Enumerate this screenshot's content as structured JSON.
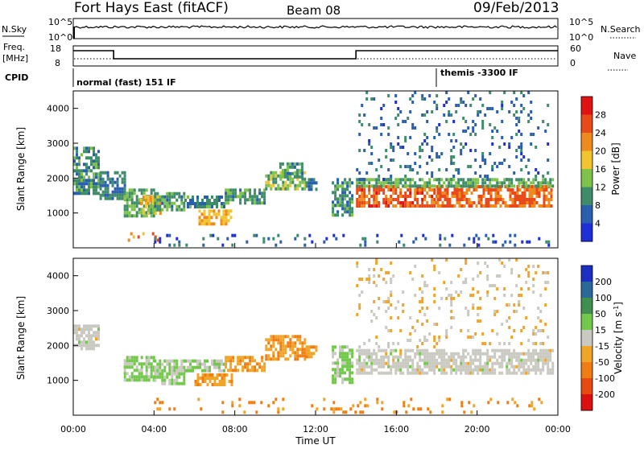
{
  "header": {
    "station": "Fort Hays East (fitACF)",
    "beam": "Beam 08",
    "date": "09/Feb/2013"
  },
  "panels": {
    "nsky": {
      "label": "N.Sky",
      "left_ticks": [
        "10^5",
        "10^0"
      ],
      "right_ticks": [
        "10^5",
        "10^0"
      ],
      "right_label": "N.Search"
    },
    "freq": {
      "label": "Freq.",
      "unit": "[MHz]",
      "left_ticks": [
        "18",
        "8"
      ],
      "right_ticks": [
        "60",
        "0"
      ],
      "right_label": "Nave"
    },
    "cpid": {
      "label": "CPID",
      "segments": [
        {
          "label": "normal (fast) 151 IF",
          "start_ut": 0,
          "end_ut": 18
        },
        {
          "label": "themis -3300 IF",
          "start_ut": 18,
          "end_ut": 24
        }
      ]
    }
  },
  "colors": {
    "power": [
      "#1f2fd8",
      "#2a5fb0",
      "#3f8c6a",
      "#7ec24a",
      "#f2c430",
      "#ef8a1f",
      "#e94a19",
      "#e01313"
    ],
    "velocity": [
      "#1c2fc0",
      "#2a6a9a",
      "#3f8f4e",
      "#72c84a",
      "#c9c9c1",
      "#f0a428",
      "#ef7d14",
      "#e84a14",
      "#dc1010"
    ]
  },
  "chart_data": [
    {
      "type": "heatmap",
      "name": "power",
      "ylabel": "Slant Range [km]",
      "y_ticks": [
        "1000",
        "2000",
        "3000",
        "4000"
      ],
      "ylim": [
        0,
        4500
      ],
      "xlim": [
        0,
        24
      ],
      "colorbar": {
        "label": "Power [dB]",
        "ticks": [
          "4",
          "8",
          "12",
          "16",
          "20",
          "24",
          "28"
        ],
        "range": [
          0,
          32
        ]
      },
      "bands": [
        {
          "t0": 0.0,
          "t1": 1.3,
          "r0": 1600,
          "r1": 2900,
          "v": 10
        },
        {
          "t0": 1.3,
          "t1": 2.5,
          "r0": 1400,
          "r1": 2200,
          "v": 8
        },
        {
          "t0": 2.5,
          "t1": 4.0,
          "r0": 900,
          "r1": 1700,
          "v": 12
        },
        {
          "t0": 3.3,
          "t1": 4.3,
          "r0": 1000,
          "r1": 1500,
          "v": 18
        },
        {
          "t0": 4.0,
          "t1": 5.5,
          "r0": 1100,
          "r1": 1600,
          "v": 11
        },
        {
          "t0": 5.5,
          "t1": 7.5,
          "r0": 1200,
          "r1": 1500,
          "v": 9
        },
        {
          "t0": 6.2,
          "t1": 7.8,
          "r0": 700,
          "r1": 1100,
          "v": 20
        },
        {
          "t0": 7.5,
          "t1": 9.5,
          "r0": 1300,
          "r1": 1700,
          "v": 10
        },
        {
          "t0": 9.5,
          "t1": 11.5,
          "r0": 1700,
          "r1": 2200,
          "v": 14
        },
        {
          "t0": 10.2,
          "t1": 11.3,
          "r0": 2000,
          "r1": 2450,
          "v": 10
        },
        {
          "t0": 11.5,
          "t1": 12.0,
          "r0": 1700,
          "r1": 2000,
          "v": 9
        },
        {
          "t0": 12.8,
          "t1": 13.8,
          "r0": 900,
          "r1": 2000,
          "v": 10
        },
        {
          "t0": 14.0,
          "t1": 18.0,
          "r0": 1200,
          "r1": 1800,
          "v": 25
        },
        {
          "t0": 18.0,
          "t1": 23.7,
          "r0": 1200,
          "r1": 1800,
          "v": 24
        },
        {
          "t0": 14.0,
          "t1": 23.7,
          "r0": 1750,
          "r1": 2000,
          "v": 12
        },
        {
          "t0": 14.0,
          "t1": 23.5,
          "r0": 2000,
          "r1": 4500,
          "v": 7
        },
        {
          "t0": 2.7,
          "t1": 4.2,
          "r0": 250,
          "r1": 450,
          "v": 22
        },
        {
          "t0": 4.0,
          "t1": 23.5,
          "r0": 80,
          "r1": 400,
          "v": 6
        }
      ]
    },
    {
      "type": "heatmap",
      "name": "velocity",
      "ylabel": "Slant Range [km]",
      "xlabel": "Time UT",
      "x_ticks": [
        "00:00",
        "04:00",
        "08:00",
        "12:00",
        "16:00",
        "20:00",
        "00:00"
      ],
      "y_ticks": [
        "1000",
        "2000",
        "3000",
        "4000"
      ],
      "ylim": [
        0,
        4500
      ],
      "xlim": [
        0,
        24
      ],
      "colorbar": {
        "label": "Velocity [m s",
        "label_sup": "-1",
        "label_end": "]",
        "ticks": [
          "200",
          "100",
          "50",
          "15",
          "-15",
          "-50",
          "-100",
          "-200"
        ],
        "range": [
          -250,
          250
        ]
      },
      "bands": [
        {
          "t0": 0.0,
          "t1": 1.3,
          "r0": 1900,
          "r1": 2600,
          "v": 0
        },
        {
          "t0": 2.5,
          "t1": 4.0,
          "r0": 1000,
          "r1": 1700,
          "v": 40
        },
        {
          "t0": 4.0,
          "t1": 5.5,
          "r0": 900,
          "r1": 1600,
          "v": 35
        },
        {
          "t0": 5.5,
          "t1": 7.5,
          "r0": 1300,
          "r1": 1600,
          "v": 25
        },
        {
          "t0": 6.0,
          "t1": 7.8,
          "r0": 900,
          "r1": 1200,
          "v": -70
        },
        {
          "t0": 7.5,
          "t1": 9.5,
          "r0": 1300,
          "r1": 1700,
          "v": -70
        },
        {
          "t0": 9.5,
          "t1": 11.5,
          "r0": 1600,
          "r1": 2300,
          "v": -80
        },
        {
          "t0": 11.5,
          "t1": 12.0,
          "r0": 1700,
          "r1": 2000,
          "v": -60
        },
        {
          "t0": 12.8,
          "t1": 13.8,
          "r0": 900,
          "r1": 2000,
          "v": 45
        },
        {
          "t0": 14.0,
          "t1": 23.7,
          "r0": 1200,
          "r1": 1900,
          "v": 0
        },
        {
          "t0": 14.0,
          "t1": 23.5,
          "r0": 2000,
          "r1": 4500,
          "v": -30
        },
        {
          "t0": 4.0,
          "t1": 23.5,
          "r0": 80,
          "r1": 500,
          "v": -90
        }
      ]
    }
  ]
}
